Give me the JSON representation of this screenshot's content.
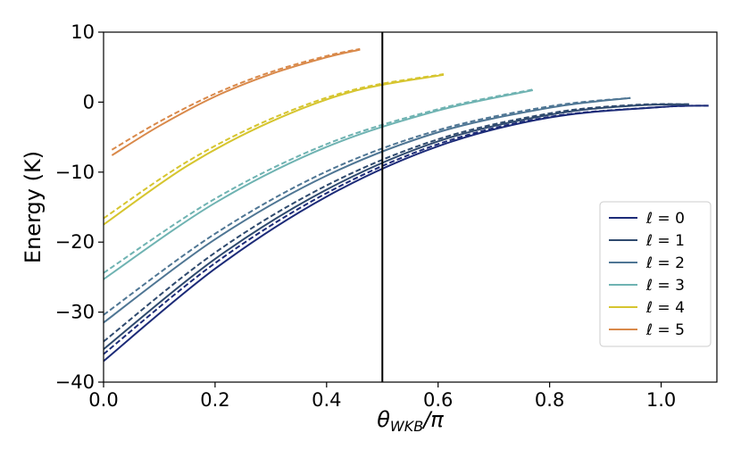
{
  "chart_data": {
    "type": "line",
    "title": "",
    "xlabel": "θ_WKB/π",
    "xlabel_main": "θ",
    "xlabel_sub": "WKB",
    "xlabel_tail": "/π",
    "ylabel": "Energy (K)",
    "xlim": [
      0.0,
      1.1
    ],
    "ylim": [
      -40,
      10
    ],
    "xticks": [
      0.0,
      0.2,
      0.4,
      0.6,
      0.8,
      1.0
    ],
    "xtick_labels": [
      "0.0",
      "0.2",
      "0.4",
      "0.6",
      "0.8",
      "1.0"
    ],
    "yticks": [
      -40,
      -30,
      -20,
      -10,
      0,
      10
    ],
    "ytick_labels": [
      "−40",
      "−30",
      "−20",
      "−10",
      "0",
      "10"
    ],
    "grid": false,
    "legend_position": "lower-right",
    "vertical_line": {
      "x": 0.5,
      "color": "#000000"
    },
    "series": [
      {
        "name": "ℓ = 0",
        "color": "#1c2b78",
        "solid": {
          "x": [
            0.0,
            0.2,
            0.4,
            0.6,
            0.8,
            1.0,
            1.085
          ],
          "y": [
            -37.0,
            -23.8,
            -13.5,
            -6.3,
            -2.2,
            -0.7,
            -0.5
          ]
        },
        "dashed": {
          "x": [
            0.0,
            0.2,
            0.4,
            0.6,
            0.8,
            1.0,
            1.085
          ],
          "y": [
            -36.0,
            -23.0,
            -13.0,
            -6.0,
            -2.1,
            -0.7,
            -0.5
          ]
        }
      },
      {
        "name": "ℓ = 1",
        "color": "#2f4a6e",
        "solid": {
          "x": [
            0.0,
            0.2,
            0.4,
            0.6,
            0.8,
            0.95,
            1.05
          ],
          "y": [
            -35.3,
            -22.4,
            -12.5,
            -5.6,
            -1.8,
            -0.5,
            -0.3
          ]
        },
        "dashed": {
          "x": [
            0.0,
            0.2,
            0.4,
            0.6,
            0.8,
            0.95,
            1.05
          ],
          "y": [
            -34.2,
            -21.5,
            -11.9,
            -5.3,
            -1.6,
            -0.4,
            -0.3
          ]
        }
      },
      {
        "name": "ℓ = 2",
        "color": "#4f7694",
        "solid": {
          "x": [
            0.0,
            0.2,
            0.4,
            0.6,
            0.8,
            0.945
          ],
          "y": [
            -31.5,
            -19.6,
            -10.5,
            -4.3,
            -0.8,
            0.6
          ]
        },
        "dashed": {
          "x": [
            0.0,
            0.2,
            0.4,
            0.6,
            0.8,
            0.945
          ],
          "y": [
            -30.4,
            -18.8,
            -9.9,
            -4.0,
            -0.6,
            0.6
          ]
        }
      },
      {
        "name": "ℓ = 3",
        "color": "#6fb3b2",
        "solid": {
          "x": [
            0.0,
            0.2,
            0.4,
            0.6,
            0.77
          ],
          "y": [
            -25.3,
            -14.4,
            -6.4,
            -1.2,
            1.7
          ]
        },
        "dashed": {
          "x": [
            0.0,
            0.2,
            0.4,
            0.6,
            0.77
          ],
          "y": [
            -24.4,
            -13.8,
            -6.0,
            -1.0,
            1.8
          ]
        }
      },
      {
        "name": "ℓ = 4",
        "color": "#d6c52f",
        "solid": {
          "x": [
            0.0,
            0.15,
            0.3,
            0.45,
            0.61
          ],
          "y": [
            -17.5,
            -9.1,
            -2.8,
            1.6,
            3.9
          ]
        },
        "dashed": {
          "x": [
            0.0,
            0.15,
            0.3,
            0.45,
            0.61
          ],
          "y": [
            -16.6,
            -8.5,
            -2.4,
            1.8,
            4.0
          ]
        }
      },
      {
        "name": "ℓ = 5",
        "color": "#d9894a",
        "solid": {
          "x": [
            0.015,
            0.1,
            0.2,
            0.3,
            0.4,
            0.46
          ],
          "y": [
            -7.6,
            -3.4,
            0.8,
            4.0,
            6.4,
            7.5
          ]
        },
        "dashed": {
          "x": [
            0.015,
            0.1,
            0.2,
            0.3,
            0.4,
            0.46
          ],
          "y": [
            -6.8,
            -2.8,
            1.2,
            4.3,
            6.6,
            7.6
          ]
        }
      }
    ]
  }
}
